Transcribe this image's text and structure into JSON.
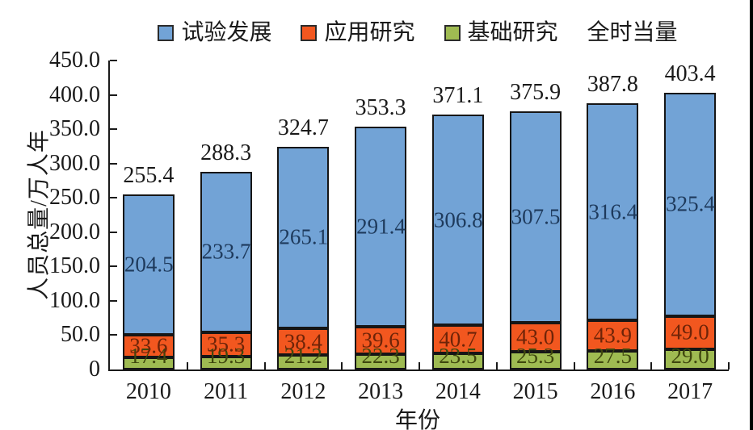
{
  "chart_data": {
    "type": "bar",
    "stacked": true,
    "title": "",
    "xlabel": "年份",
    "ylabel": "人员总量/万人年",
    "categories": [
      "2010",
      "2011",
      "2012",
      "2013",
      "2014",
      "2015",
      "2016",
      "2017"
    ],
    "series": [
      {
        "key": "experimental-development",
        "name": "试验发展",
        "color": "#72A3D6",
        "label_color": "#1E3A5C",
        "values": [
          204.5,
          233.7,
          265.1,
          291.4,
          306.8,
          307.5,
          316.4,
          325.4
        ]
      },
      {
        "key": "applied-research",
        "name": "应用研究",
        "color": "#F2571F",
        "label_color": "#6E2408",
        "values": [
          33.6,
          35.3,
          38.4,
          39.6,
          40.7,
          43.0,
          43.9,
          49.0
        ]
      },
      {
        "key": "basic-research",
        "name": "基础研究",
        "color": "#9FBB52",
        "label_color": "#3F470E",
        "values": [
          17.4,
          19.3,
          21.2,
          22.3,
          23.5,
          25.3,
          27.5,
          29.0
        ]
      }
    ],
    "stack_order_bottom_to_top": [
      "基础研究",
      "应用研究",
      "试验发展"
    ],
    "totals": [
      255.4,
      288.3,
      324.7,
      353.3,
      371.1,
      375.9,
      387.8,
      403.4
    ],
    "legend": [
      {
        "key": "experimental-development",
        "label": "试验发展",
        "color": "#72A3D6"
      },
      {
        "key": "applied-research",
        "label": "应用研究",
        "color": "#F2571F"
      },
      {
        "key": "basic-research",
        "label": "基础研究",
        "color": "#9FBB52"
      },
      {
        "key": "full-time-equivalent",
        "label": "全时当量",
        "color": null
      }
    ],
    "ylim": [
      0,
      450
    ],
    "ytick_step": 50,
    "yticks": [
      "450.0",
      "400.0",
      "350.0",
      "300.0",
      "250.0",
      "200.0",
      "150.0",
      "100.0",
      "50.0",
      "0"
    ],
    "grid": false,
    "legend_position": "top",
    "axis_color": "#1a1a1a",
    "bar_border_color": "#161616"
  }
}
